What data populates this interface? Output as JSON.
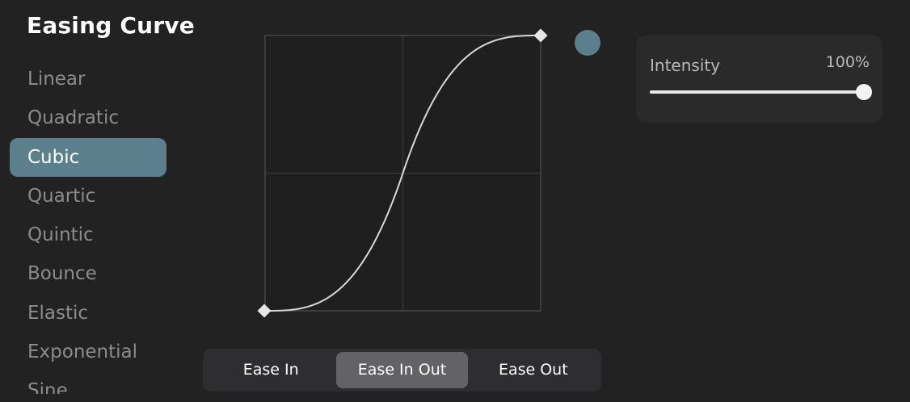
{
  "header": {
    "title": "Easing Curve"
  },
  "sidebar": {
    "items": [
      {
        "label": "Linear",
        "active": false
      },
      {
        "label": "Quadratic",
        "active": false
      },
      {
        "label": "Cubic",
        "active": true
      },
      {
        "label": "Quartic",
        "active": false
      },
      {
        "label": "Quintic",
        "active": false
      },
      {
        "label": "Bounce",
        "active": false
      },
      {
        "label": "Elastic",
        "active": false
      },
      {
        "label": "Exponential",
        "active": false
      },
      {
        "label": "Sine",
        "active": false
      }
    ]
  },
  "intensity": {
    "label": "Intensity",
    "value_text": "100%",
    "value": 1.0
  },
  "modes": {
    "items": [
      {
        "label": "Ease In",
        "active": false
      },
      {
        "label": "Ease In Out",
        "active": true
      },
      {
        "label": "Ease Out",
        "active": false
      }
    ]
  },
  "colors": {
    "accent": "#5c7f8d",
    "background": "#222223",
    "curve": "#d8d8d8"
  },
  "curve": {
    "type": "cubic",
    "mode": "ease-in-out",
    "grid_divisions": 2
  }
}
